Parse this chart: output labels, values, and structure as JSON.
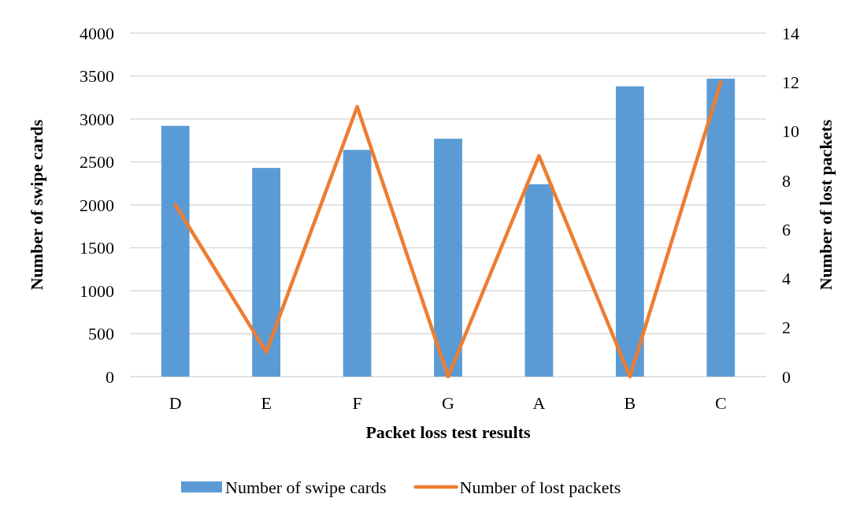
{
  "chart_data": {
    "type": "bar",
    "xlabel": "Packet loss test results",
    "ylabel": "Number of swipe cards",
    "y2label": "Number of lost packets",
    "categories": [
      "D",
      "E",
      "F",
      "G",
      "A",
      "B",
      "C"
    ],
    "series": [
      {
        "name": "Number of swipe cards",
        "color": "#5b9bd5",
        "values": [
          2920,
          2430,
          2640,
          2770,
          2240,
          3380,
          3470
        ]
      },
      {
        "name": "Number of lost packets",
        "type": "line",
        "axis": "y2",
        "color": "#ed7d31",
        "values": [
          7,
          1,
          11,
          0,
          9,
          0,
          12
        ]
      }
    ],
    "ylim": [
      0,
      4000
    ],
    "yticks": [
      0,
      500,
      1000,
      1500,
      2000,
      2500,
      3000,
      3500,
      4000
    ],
    "y2lim": [
      0,
      14
    ],
    "y2ticks": [
      0,
      2,
      4,
      6,
      8,
      10,
      12,
      14
    ],
    "grid": "y",
    "legend": "bottom",
    "marker": "none",
    "line_style": "solid"
  }
}
